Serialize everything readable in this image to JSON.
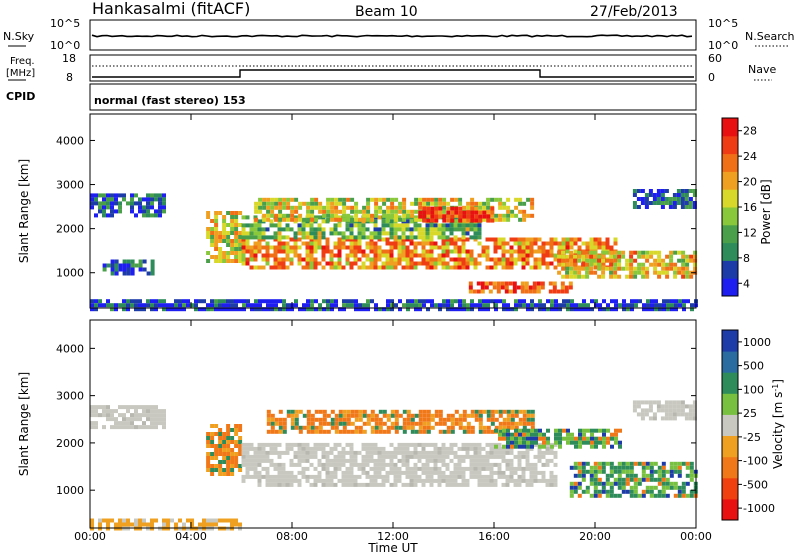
{
  "header": {
    "station": "Hankasalmi (fitACF)",
    "beam": "Beam 10",
    "date": "27/Feb/2013"
  },
  "noise_panel": {
    "left_label": "N.Sky",
    "right_label": "N.Search",
    "left_ticks": [
      "10^5",
      "10^0"
    ],
    "right_ticks": [
      "10^5",
      "10^0"
    ]
  },
  "freq_panel": {
    "left_label_1": "Freq.",
    "left_label_2": "[MHz]",
    "right_label": "Nave",
    "left_ticks": [
      "18",
      "8"
    ],
    "right_ticks": [
      "60",
      "0"
    ]
  },
  "cpid": {
    "label": "CPID",
    "value": "normal (fast stereo) 153"
  },
  "power_colorbar": {
    "label": "Power [dB]",
    "ticks": [
      "28",
      "24",
      "20",
      "16",
      "12",
      "8",
      "4"
    ],
    "colors": [
      "#1e1ef0",
      "#1e3ca8",
      "#2e8c5a",
      "#4aa04a",
      "#88c83a",
      "#d8d82a",
      "#f0a020",
      "#f07018",
      "#f03c14",
      "#e81010"
    ]
  },
  "velocity_colorbar": {
    "label": "Velocity [m s",
    "label_sup": "-1",
    "label_end": "]",
    "ticks": [
      "1000",
      "500",
      "100",
      "25",
      "-25",
      "-100",
      "-500",
      "-1000"
    ],
    "colors": [
      "#1e3ca8",
      "#2a6ca0",
      "#2e8c5a",
      "#78c040",
      "#c8c8c0",
      "#f0a020",
      "#f07818",
      "#f04010",
      "#e81010"
    ]
  },
  "chart_data": [
    {
      "type": "heatmap",
      "title": "Power",
      "ylabel": "Slant Range [km]",
      "xlabel": "Time UT",
      "yticks": [
        "1000",
        "2000",
        "3000",
        "4000"
      ],
      "ylim": [
        200,
        4600
      ],
      "xlim": [
        0,
        24
      ],
      "colorbar_range_db": [
        2,
        32
      ],
      "echo_regions": [
        {
          "t0": 0.0,
          "t1": 3.0,
          "r0": 2300,
          "r1": 2800,
          "level": 0.15
        },
        {
          "t0": 0.5,
          "t1": 2.5,
          "r0": 1000,
          "r1": 1300,
          "level": 0.15
        },
        {
          "t0": 4.6,
          "t1": 6.0,
          "r0": 1300,
          "r1": 2400,
          "level": 0.55
        },
        {
          "t0": 6.0,
          "t1": 20.8,
          "r0": 1100,
          "r1": 1800,
          "level": 0.7
        },
        {
          "t0": 6.0,
          "t1": 15.5,
          "r0": 1800,
          "r1": 2300,
          "level": 0.4
        },
        {
          "t0": 6.5,
          "t1": 17.5,
          "r0": 2200,
          "r1": 2700,
          "level": 0.55
        },
        {
          "t0": 13.0,
          "t1": 16.0,
          "r0": 2200,
          "r1": 2500,
          "level": 0.9
        },
        {
          "t0": 18.5,
          "t1": 24.0,
          "r0": 900,
          "r1": 1500,
          "level": 0.6
        },
        {
          "t0": 21.5,
          "t1": 24.0,
          "r0": 2500,
          "r1": 2900,
          "level": 0.15
        },
        {
          "t0": 15.0,
          "t1": 19.0,
          "r0": 600,
          "r1": 800,
          "level": 0.85
        },
        {
          "t0": 0.0,
          "t1": 24.0,
          "r0": 200,
          "r1": 400,
          "level": 0.1
        }
      ]
    },
    {
      "type": "heatmap",
      "title": "Velocity",
      "ylabel": "Slant Range [km]",
      "xlabel": "Time UT",
      "yticks": [
        "1000",
        "2000",
        "3000",
        "4000"
      ],
      "xticks": [
        "00:00",
        "04:00",
        "08:00",
        "12:00",
        "16:00",
        "20:00",
        "00:00"
      ],
      "ylim": [
        200,
        4600
      ],
      "xlim": [
        0,
        24
      ],
      "echo_regions": [
        {
          "t0": 0.0,
          "t1": 3.0,
          "r0": 2300,
          "r1": 2800,
          "class": "gray"
        },
        {
          "t0": 4.6,
          "t1": 6.0,
          "r0": 1300,
          "r1": 2400,
          "class": "orange"
        },
        {
          "t0": 6.0,
          "t1": 18.5,
          "r0": 1100,
          "r1": 2000,
          "class": "gray"
        },
        {
          "t0": 7.0,
          "t1": 17.5,
          "r0": 2200,
          "r1": 2700,
          "class": "orange"
        },
        {
          "t0": 16.0,
          "t1": 21.0,
          "r0": 1900,
          "r1": 2300,
          "class": "green"
        },
        {
          "t0": 19.0,
          "t1": 24.0,
          "r0": 900,
          "r1": 1600,
          "class": "green"
        },
        {
          "t0": 21.5,
          "t1": 24.0,
          "r0": 2500,
          "r1": 2900,
          "class": "gray"
        },
        {
          "t0": 0.0,
          "t1": 6.0,
          "r0": 200,
          "r1": 400,
          "class": "yellow"
        }
      ]
    }
  ]
}
